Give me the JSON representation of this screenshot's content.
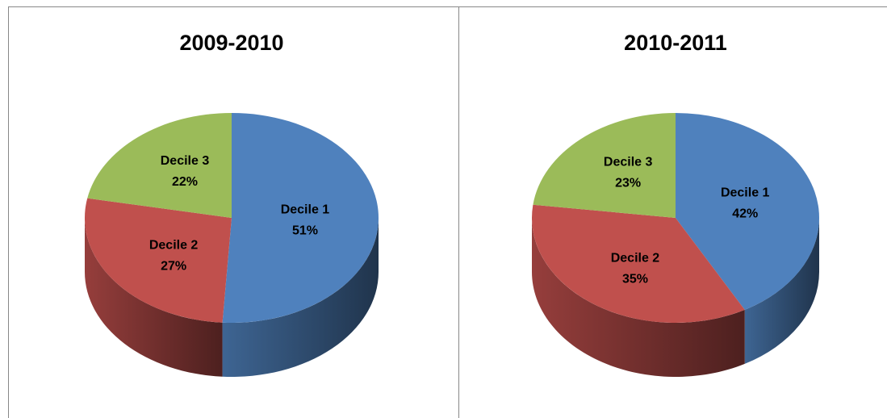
{
  "chart_data": [
    {
      "type": "pie",
      "title": "2009-2010",
      "categories": [
        "Decile 1",
        "Decile 2",
        "Decile 3"
      ],
      "values": [
        51,
        27,
        22
      ],
      "value_labels": [
        "51%",
        "27%",
        "22%"
      ],
      "colors": [
        "#4f81bd",
        "#c0504d",
        "#9bbb59"
      ]
    },
    {
      "type": "pie",
      "title": "2010-2011",
      "categories": [
        "Decile 1",
        "Decile 2",
        "Decile 3"
      ],
      "values": [
        42,
        35,
        23
      ],
      "value_labels": [
        "42%",
        "35%",
        "23%"
      ],
      "colors": [
        "#4f81bd",
        "#c0504d",
        "#9bbb59"
      ]
    }
  ]
}
